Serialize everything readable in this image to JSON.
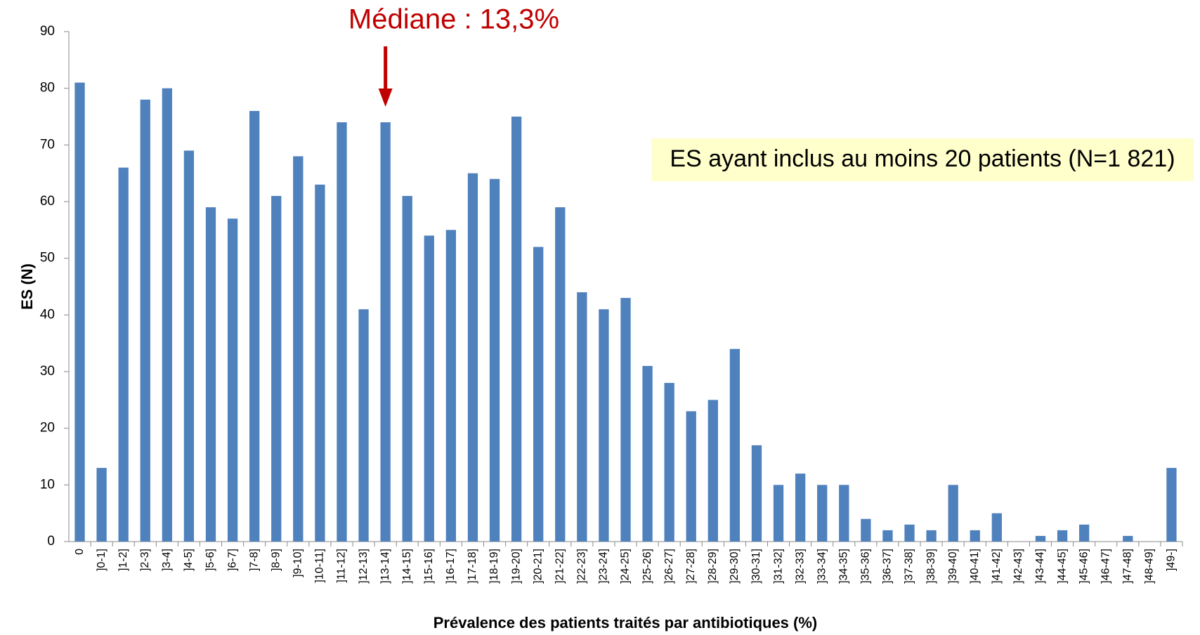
{
  "chart_data": {
    "type": "bar",
    "annotations": [
      "Médiane : 13,3%",
      "ES ayant inclus au moins 20 patients (N=1 821)"
    ],
    "xlabel": "Prévalence  des patients traités par antibiotiques (%)",
    "ylabel": "ES (N)",
    "categories": [
      "0",
      "]0-1]",
      "]1-2]",
      "]2-3]",
      "]3-4]",
      "]4-5]",
      "]5-6]",
      "]6-7]",
      "]7-8]",
      "]8-9]",
      "]9-10]",
      "]10-11]",
      "]11-12]",
      "]12-13]",
      "]13-14]",
      "]14-15]",
      "]15-16]",
      "]16-17]",
      "]17-18]",
      "]18-19]",
      "]19-20]",
      "]20-21]",
      "]21-22]",
      "]22-23]",
      "]23-24]",
      "]24-25]",
      "]25-26]",
      "]26-27]",
      "]27-28]",
      "]28-29]",
      "]29-30]",
      "]30-31]",
      "]31-32]",
      "]32-33]",
      "]33-34]",
      "]34-35]",
      "]35-36]",
      "]36-37]",
      "]37-38]",
      "]38-39]",
      "]39-40]",
      "]40-41]",
      "]41-42]",
      "]42-43]",
      "]43-44]",
      "]44-45]",
      "]45-46]",
      "]46-47]",
      "]47-48]",
      "]48-49]",
      "]49-]"
    ],
    "values": [
      81,
      13,
      66,
      78,
      80,
      69,
      59,
      57,
      76,
      61,
      68,
      63,
      74,
      41,
      74,
      61,
      54,
      55,
      65,
      64,
      75,
      52,
      59,
      44,
      41,
      43,
      31,
      28,
      23,
      25,
      34,
      17,
      10,
      12,
      10,
      10,
      4,
      2,
      3,
      2,
      10,
      2,
      5,
      0,
      1,
      2,
      3,
      0,
      1,
      0,
      13
    ],
    "color": "#4f81bd",
    "ylim": [
      0,
      90
    ],
    "yticks": [
      0,
      10,
      20,
      30,
      40,
      50,
      60,
      70,
      80,
      90
    ],
    "grid": false
  }
}
